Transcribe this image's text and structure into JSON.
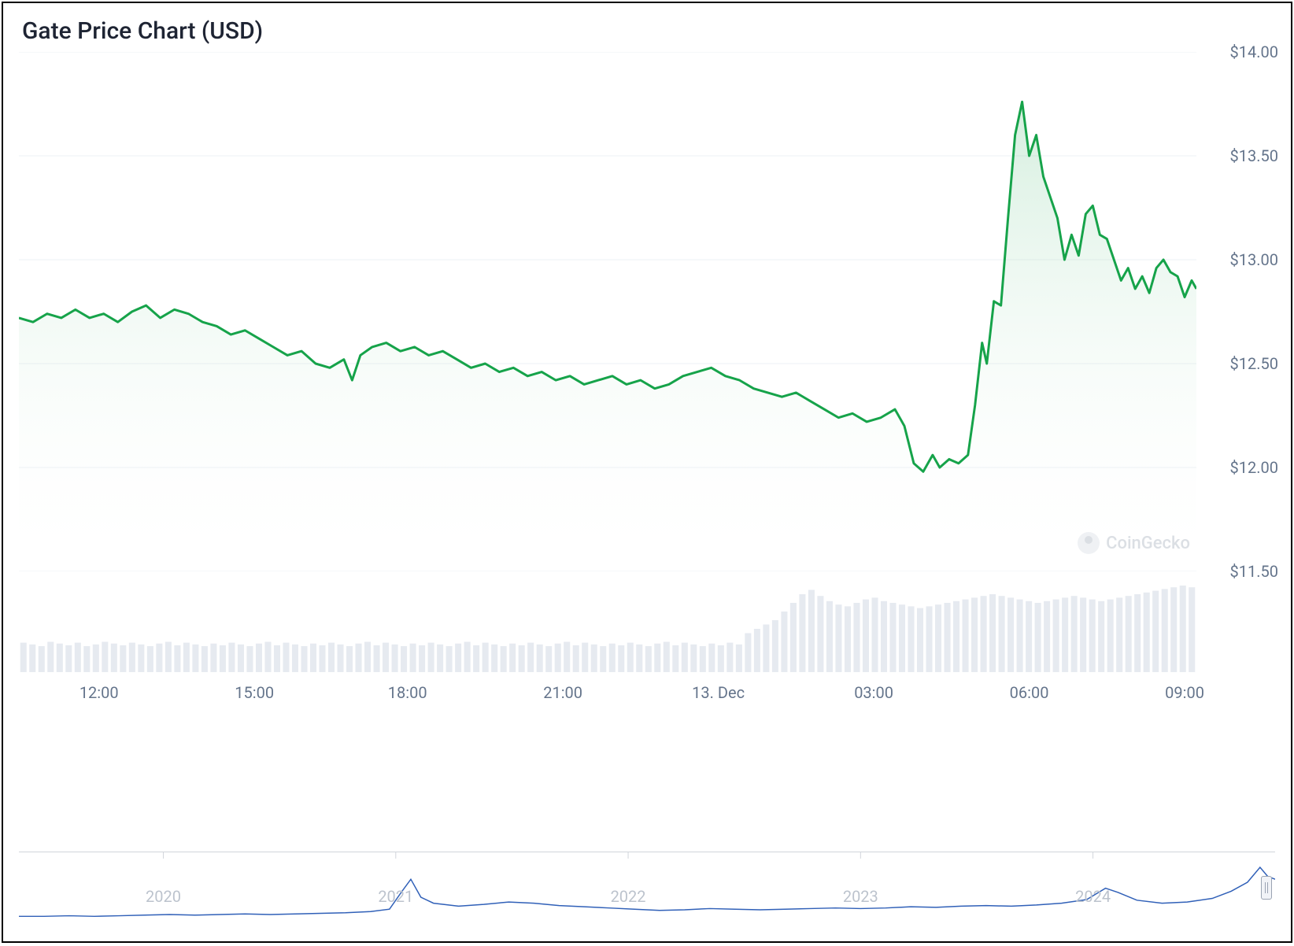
{
  "chart": {
    "title": "Gate Price Chart (USD)",
    "type": "area",
    "line_color": "#16a34a",
    "line_width": 3,
    "fill_top_color": "#16a34a",
    "fill_top_opacity": 0.18,
    "fill_bottom_color": "#ffffff",
    "fill_bottom_opacity": 0.0,
    "grid_color": "#eef1f5",
    "background_color": "#ffffff",
    "y_axis": {
      "min": 11.5,
      "max": 14.0,
      "tick_step": 0.5,
      "labels": [
        "$14.00",
        "$13.50",
        "$13.00",
        "$12.50",
        "$12.00",
        "$11.50"
      ],
      "label_color": "#64748b",
      "label_fontsize": 20
    },
    "x_axis": {
      "labels": [
        "12:00",
        "15:00",
        "18:00",
        "21:00",
        "13. Dec",
        "03:00",
        "06:00",
        "09:00"
      ],
      "positions_pct": [
        6.8,
        20.0,
        33.0,
        46.2,
        59.4,
        72.6,
        85.8,
        99.0
      ],
      "label_color": "#64748b",
      "label_fontsize": 20
    },
    "series": [
      {
        "x": 0.0,
        "y": 12.72
      },
      {
        "x": 0.012,
        "y": 12.7
      },
      {
        "x": 0.024,
        "y": 12.74
      },
      {
        "x": 0.036,
        "y": 12.72
      },
      {
        "x": 0.048,
        "y": 12.76
      },
      {
        "x": 0.06,
        "y": 12.72
      },
      {
        "x": 0.072,
        "y": 12.74
      },
      {
        "x": 0.084,
        "y": 12.7
      },
      {
        "x": 0.096,
        "y": 12.75
      },
      {
        "x": 0.108,
        "y": 12.78
      },
      {
        "x": 0.12,
        "y": 12.72
      },
      {
        "x": 0.132,
        "y": 12.76
      },
      {
        "x": 0.144,
        "y": 12.74
      },
      {
        "x": 0.156,
        "y": 12.7
      },
      {
        "x": 0.168,
        "y": 12.68
      },
      {
        "x": 0.18,
        "y": 12.64
      },
      {
        "x": 0.192,
        "y": 12.66
      },
      {
        "x": 0.204,
        "y": 12.62
      },
      {
        "x": 0.216,
        "y": 12.58
      },
      {
        "x": 0.228,
        "y": 12.54
      },
      {
        "x": 0.24,
        "y": 12.56
      },
      {
        "x": 0.252,
        "y": 12.5
      },
      {
        "x": 0.264,
        "y": 12.48
      },
      {
        "x": 0.276,
        "y": 12.52
      },
      {
        "x": 0.283,
        "y": 12.42
      },
      {
        "x": 0.29,
        "y": 12.54
      },
      {
        "x": 0.3,
        "y": 12.58
      },
      {
        "x": 0.312,
        "y": 12.6
      },
      {
        "x": 0.324,
        "y": 12.56
      },
      {
        "x": 0.336,
        "y": 12.58
      },
      {
        "x": 0.348,
        "y": 12.54
      },
      {
        "x": 0.36,
        "y": 12.56
      },
      {
        "x": 0.372,
        "y": 12.52
      },
      {
        "x": 0.384,
        "y": 12.48
      },
      {
        "x": 0.396,
        "y": 12.5
      },
      {
        "x": 0.408,
        "y": 12.46
      },
      {
        "x": 0.42,
        "y": 12.48
      },
      {
        "x": 0.432,
        "y": 12.44
      },
      {
        "x": 0.444,
        "y": 12.46
      },
      {
        "x": 0.456,
        "y": 12.42
      },
      {
        "x": 0.468,
        "y": 12.44
      },
      {
        "x": 0.48,
        "y": 12.4
      },
      {
        "x": 0.492,
        "y": 12.42
      },
      {
        "x": 0.504,
        "y": 12.44
      },
      {
        "x": 0.516,
        "y": 12.4
      },
      {
        "x": 0.528,
        "y": 12.42
      },
      {
        "x": 0.54,
        "y": 12.38
      },
      {
        "x": 0.552,
        "y": 12.4
      },
      {
        "x": 0.564,
        "y": 12.44
      },
      {
        "x": 0.576,
        "y": 12.46
      },
      {
        "x": 0.588,
        "y": 12.48
      },
      {
        "x": 0.6,
        "y": 12.44
      },
      {
        "x": 0.612,
        "y": 12.42
      },
      {
        "x": 0.624,
        "y": 12.38
      },
      {
        "x": 0.636,
        "y": 12.36
      },
      {
        "x": 0.648,
        "y": 12.34
      },
      {
        "x": 0.66,
        "y": 12.36
      },
      {
        "x": 0.672,
        "y": 12.32
      },
      {
        "x": 0.684,
        "y": 12.28
      },
      {
        "x": 0.696,
        "y": 12.24
      },
      {
        "x": 0.708,
        "y": 12.26
      },
      {
        "x": 0.72,
        "y": 12.22
      },
      {
        "x": 0.732,
        "y": 12.24
      },
      {
        "x": 0.744,
        "y": 12.28
      },
      {
        "x": 0.752,
        "y": 12.2
      },
      {
        "x": 0.76,
        "y": 12.02
      },
      {
        "x": 0.768,
        "y": 11.98
      },
      {
        "x": 0.776,
        "y": 12.06
      },
      {
        "x": 0.782,
        "y": 12.0
      },
      {
        "x": 0.79,
        "y": 12.04
      },
      {
        "x": 0.798,
        "y": 12.02
      },
      {
        "x": 0.806,
        "y": 12.06
      },
      {
        "x": 0.812,
        "y": 12.3
      },
      {
        "x": 0.818,
        "y": 12.6
      },
      {
        "x": 0.822,
        "y": 12.5
      },
      {
        "x": 0.828,
        "y": 12.8
      },
      {
        "x": 0.834,
        "y": 12.78
      },
      {
        "x": 0.84,
        "y": 13.2
      },
      {
        "x": 0.846,
        "y": 13.6
      },
      {
        "x": 0.852,
        "y": 13.76
      },
      {
        "x": 0.858,
        "y": 13.5
      },
      {
        "x": 0.864,
        "y": 13.6
      },
      {
        "x": 0.87,
        "y": 13.4
      },
      {
        "x": 0.876,
        "y": 13.3
      },
      {
        "x": 0.882,
        "y": 13.2
      },
      {
        "x": 0.888,
        "y": 13.0
      },
      {
        "x": 0.894,
        "y": 13.12
      },
      {
        "x": 0.9,
        "y": 13.02
      },
      {
        "x": 0.906,
        "y": 13.22
      },
      {
        "x": 0.912,
        "y": 13.26
      },
      {
        "x": 0.918,
        "y": 13.12
      },
      {
        "x": 0.924,
        "y": 13.1
      },
      {
        "x": 0.93,
        "y": 13.0
      },
      {
        "x": 0.936,
        "y": 12.9
      },
      {
        "x": 0.942,
        "y": 12.96
      },
      {
        "x": 0.948,
        "y": 12.86
      },
      {
        "x": 0.954,
        "y": 12.92
      },
      {
        "x": 0.96,
        "y": 12.84
      },
      {
        "x": 0.966,
        "y": 12.96
      },
      {
        "x": 0.972,
        "y": 13.0
      },
      {
        "x": 0.978,
        "y": 12.94
      },
      {
        "x": 0.984,
        "y": 12.92
      },
      {
        "x": 0.99,
        "y": 12.82
      },
      {
        "x": 0.996,
        "y": 12.9
      },
      {
        "x": 1.0,
        "y": 12.86
      }
    ],
    "volume": {
      "bar_color": "#e6eaf0",
      "bar_width_pct": 0.7,
      "bars": [
        0.34,
        0.32,
        0.3,
        0.35,
        0.33,
        0.31,
        0.34,
        0.3,
        0.32,
        0.35,
        0.33,
        0.31,
        0.34,
        0.32,
        0.3,
        0.33,
        0.35,
        0.31,
        0.34,
        0.32,
        0.3,
        0.33,
        0.31,
        0.34,
        0.32,
        0.3,
        0.33,
        0.35,
        0.31,
        0.34,
        0.32,
        0.3,
        0.33,
        0.31,
        0.34,
        0.32,
        0.3,
        0.33,
        0.35,
        0.31,
        0.34,
        0.32,
        0.3,
        0.33,
        0.31,
        0.34,
        0.32,
        0.3,
        0.33,
        0.35,
        0.31,
        0.34,
        0.32,
        0.3,
        0.33,
        0.31,
        0.34,
        0.32,
        0.3,
        0.33,
        0.35,
        0.31,
        0.34,
        0.32,
        0.3,
        0.33,
        0.31,
        0.34,
        0.32,
        0.3,
        0.33,
        0.35,
        0.31,
        0.34,
        0.32,
        0.3,
        0.33,
        0.31,
        0.34,
        0.32,
        0.45,
        0.5,
        0.55,
        0.6,
        0.7,
        0.8,
        0.9,
        0.95,
        0.88,
        0.82,
        0.78,
        0.76,
        0.8,
        0.84,
        0.86,
        0.82,
        0.8,
        0.78,
        0.76,
        0.74,
        0.76,
        0.78,
        0.8,
        0.82,
        0.84,
        0.86,
        0.88,
        0.9,
        0.88,
        0.86,
        0.84,
        0.82,
        0.8,
        0.82,
        0.84,
        0.86,
        0.88,
        0.86,
        0.84,
        0.82,
        0.84,
        0.86,
        0.88,
        0.9,
        0.92,
        0.94,
        0.96,
        0.98,
        1.0,
        0.98
      ]
    },
    "watermark": {
      "text": "CoinGecko",
      "color": "#a8b0bd"
    }
  },
  "navigator": {
    "line_color": "#3060b8",
    "line_width": 1.5,
    "border_color": "#d1d5db",
    "labels": [
      "2020",
      "2021",
      "2022",
      "2023",
      "2024"
    ],
    "positions_pct": [
      11.5,
      30.0,
      48.5,
      67.0,
      85.5
    ],
    "label_color": "#bcc3cd",
    "label_fontsize": 20,
    "series": [
      {
        "x": 0.0,
        "y": 0.08
      },
      {
        "x": 0.02,
        "y": 0.08
      },
      {
        "x": 0.04,
        "y": 0.09
      },
      {
        "x": 0.06,
        "y": 0.08
      },
      {
        "x": 0.08,
        "y": 0.09
      },
      {
        "x": 0.1,
        "y": 0.1
      },
      {
        "x": 0.12,
        "y": 0.11
      },
      {
        "x": 0.14,
        "y": 0.1
      },
      {
        "x": 0.16,
        "y": 0.11
      },
      {
        "x": 0.18,
        "y": 0.12
      },
      {
        "x": 0.2,
        "y": 0.11
      },
      {
        "x": 0.22,
        "y": 0.12
      },
      {
        "x": 0.24,
        "y": 0.13
      },
      {
        "x": 0.26,
        "y": 0.14
      },
      {
        "x": 0.28,
        "y": 0.16
      },
      {
        "x": 0.295,
        "y": 0.2
      },
      {
        "x": 0.305,
        "y": 0.5
      },
      {
        "x": 0.312,
        "y": 0.7
      },
      {
        "x": 0.32,
        "y": 0.4
      },
      {
        "x": 0.33,
        "y": 0.3
      },
      {
        "x": 0.35,
        "y": 0.25
      },
      {
        "x": 0.37,
        "y": 0.28
      },
      {
        "x": 0.39,
        "y": 0.32
      },
      {
        "x": 0.41,
        "y": 0.3
      },
      {
        "x": 0.43,
        "y": 0.26
      },
      {
        "x": 0.45,
        "y": 0.24
      },
      {
        "x": 0.47,
        "y": 0.22
      },
      {
        "x": 0.49,
        "y": 0.2
      },
      {
        "x": 0.51,
        "y": 0.18
      },
      {
        "x": 0.53,
        "y": 0.19
      },
      {
        "x": 0.55,
        "y": 0.21
      },
      {
        "x": 0.57,
        "y": 0.2
      },
      {
        "x": 0.59,
        "y": 0.19
      },
      {
        "x": 0.61,
        "y": 0.2
      },
      {
        "x": 0.63,
        "y": 0.21
      },
      {
        "x": 0.65,
        "y": 0.22
      },
      {
        "x": 0.67,
        "y": 0.21
      },
      {
        "x": 0.69,
        "y": 0.22
      },
      {
        "x": 0.71,
        "y": 0.24
      },
      {
        "x": 0.73,
        "y": 0.23
      },
      {
        "x": 0.75,
        "y": 0.25
      },
      {
        "x": 0.77,
        "y": 0.26
      },
      {
        "x": 0.79,
        "y": 0.25
      },
      {
        "x": 0.81,
        "y": 0.27
      },
      {
        "x": 0.83,
        "y": 0.3
      },
      {
        "x": 0.85,
        "y": 0.36
      },
      {
        "x": 0.865,
        "y": 0.55
      },
      {
        "x": 0.875,
        "y": 0.48
      },
      {
        "x": 0.89,
        "y": 0.35
      },
      {
        "x": 0.91,
        "y": 0.3
      },
      {
        "x": 0.93,
        "y": 0.32
      },
      {
        "x": 0.95,
        "y": 0.38
      },
      {
        "x": 0.965,
        "y": 0.5
      },
      {
        "x": 0.978,
        "y": 0.65
      },
      {
        "x": 0.988,
        "y": 0.9
      },
      {
        "x": 0.994,
        "y": 0.75
      },
      {
        "x": 1.0,
        "y": 0.7
      }
    ]
  }
}
